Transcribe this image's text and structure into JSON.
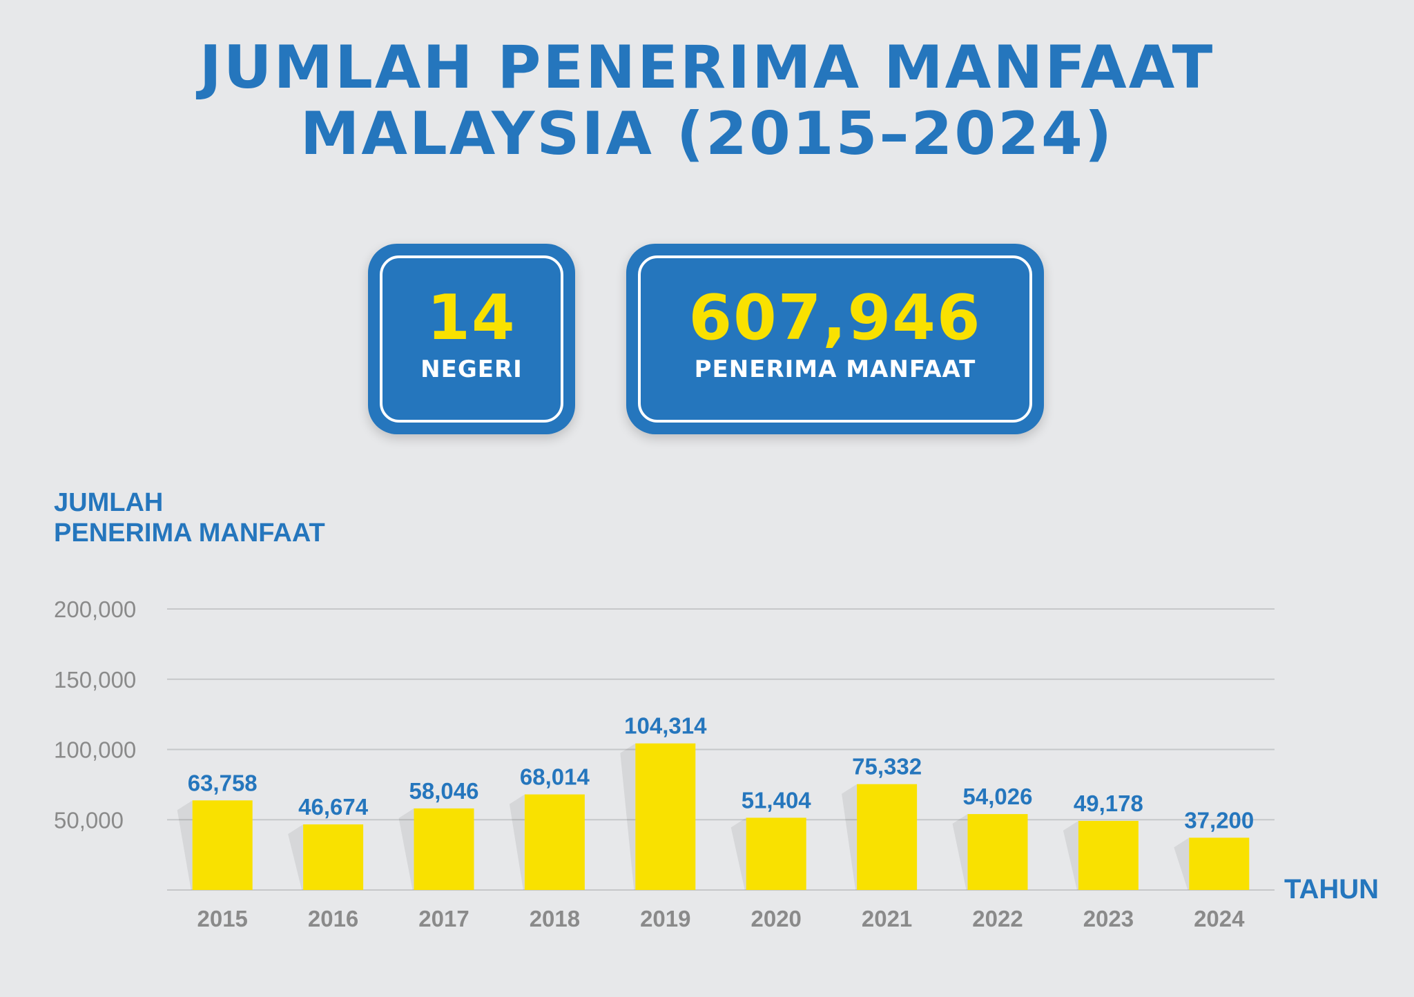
{
  "title": {
    "line1": "JUMLAH PENERIMA MANFAAT",
    "line2": "MALAYSIA (2015–2024)"
  },
  "stats": [
    {
      "value": "14",
      "label": "NEGERI"
    },
    {
      "value": "607,946",
      "label": "PENERIMA MANFAAT"
    }
  ],
  "colors": {
    "background": "#e7e8ea",
    "accent_blue": "#2576bd",
    "bar_yellow": "#f9e100",
    "tick_gray": "#8a8a8a",
    "grid_gray": "#c6c7c9"
  },
  "chart_data": {
    "type": "bar",
    "ylabel_line1": "JUMLAH",
    "ylabel_line2": "PENERIMA MANFAAT",
    "xlabel": "TAHUN",
    "categories": [
      "2015",
      "2016",
      "2017",
      "2018",
      "2019",
      "2020",
      "2021",
      "2022",
      "2023",
      "2024"
    ],
    "values": [
      63758,
      46674,
      58046,
      68014,
      104314,
      51404,
      75332,
      54026,
      49178,
      37200
    ],
    "value_labels": [
      "63,758",
      "46,674",
      "58,046",
      "68,014",
      "104,314",
      "51,404",
      "75,332",
      "54,026",
      "49,178",
      "37,200"
    ],
    "yticks": [
      50000,
      100000,
      150000,
      200000
    ],
    "ytick_labels": [
      "50,000",
      "100,000",
      "150,000",
      "200,000"
    ],
    "ylim": [
      0,
      200000
    ],
    "grid": true,
    "legend": "none"
  }
}
